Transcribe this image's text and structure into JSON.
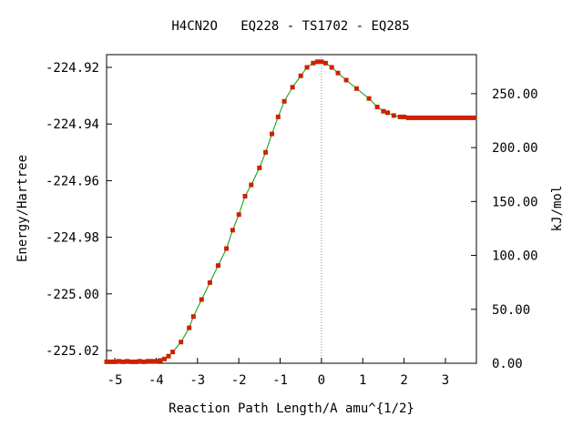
{
  "chart_data": {
    "type": "line",
    "title": "H4CN2O   EQ228 - TS1702 - EQ285",
    "xlabel": "Reaction Path Length/A amu^{1/2}",
    "ylabel": "Energy/Hartree",
    "y2label": "kJ/mol",
    "xlim": [
      -5.2,
      3.75
    ],
    "ylim": [
      -225.0245,
      -224.9155
    ],
    "y2lim": [
      0,
      286.2
    ],
    "xticks": [
      -5,
      -4,
      -3,
      -2,
      -1,
      0,
      1,
      2,
      3
    ],
    "xtick_labels": [
      "-5",
      "-4",
      "-3",
      "-2",
      "-1",
      "0",
      "1",
      "2",
      "3"
    ],
    "yticks": [
      -224.92,
      -224.94,
      -224.96,
      -224.98,
      -225.0,
      -225.02
    ],
    "ytick_labels": [
      "-224.92",
      "-224.94",
      "-224.96",
      "-224.98",
      "-225.00",
      "-225.02"
    ],
    "y2ticks": [
      0,
      50,
      100,
      150,
      200,
      250
    ],
    "y2tick_labels": [
      "0.00",
      "50.00",
      "100.00",
      "150.00",
      "200.00",
      "250.00"
    ],
    "ts_marker_x": 0,
    "colors": {
      "line": "#00a000",
      "marker": "#cc2200",
      "ts_line": "#888888"
    },
    "series": [
      {
        "x": [
          -5.2,
          -5.1,
          -5.0,
          -4.9,
          -4.8,
          -4.7,
          -4.6,
          -4.5,
          -4.4,
          -4.3,
          -4.2,
          -4.1,
          -4.0,
          -3.9,
          -3.8,
          -3.7,
          -3.6,
          -3.4,
          -3.2,
          -3.1,
          -2.9,
          -2.7,
          -2.5,
          -2.3,
          -2.15,
          -2.0,
          -1.85,
          -1.7,
          -1.5,
          -1.35,
          -1.2,
          -1.05,
          -0.9,
          -0.7,
          -0.5,
          -0.35,
          -0.2,
          -0.1,
          0.0,
          0.1,
          0.25,
          0.4,
          0.6,
          0.85,
          1.15,
          1.35,
          1.5,
          1.6,
          1.75,
          1.9,
          2.0,
          2.1,
          2.2,
          2.3,
          2.4,
          2.5,
          2.6,
          2.7,
          2.8,
          2.9,
          3.0,
          3.1,
          3.2,
          3.3,
          3.4,
          3.5,
          3.6,
          3.7
        ],
        "y": [
          -225.024,
          -225.024,
          -225.024,
          -225.0238,
          -225.024,
          -225.0238,
          -225.024,
          -225.024,
          -225.0238,
          -225.024,
          -225.0238,
          -225.0238,
          -225.0238,
          -225.0235,
          -225.023,
          -225.022,
          -225.0205,
          -225.017,
          -225.012,
          -225.008,
          -225.002,
          -224.996,
          -224.99,
          -224.984,
          -224.9775,
          -224.972,
          -224.9655,
          -224.9615,
          -224.9555,
          -224.95,
          -224.9435,
          -224.9375,
          -224.932,
          -224.927,
          -224.923,
          -224.92,
          -224.9185,
          -224.918,
          -224.918,
          -224.9185,
          -224.92,
          -224.922,
          -224.9245,
          -224.9275,
          -224.931,
          -224.934,
          -224.9355,
          -224.936,
          -224.937,
          -224.9375,
          -224.9375,
          -224.9378,
          -224.9378,
          -224.9378,
          -224.9378,
          -224.9378,
          -224.9378,
          -224.9378,
          -224.9378,
          -224.9378,
          -224.9378,
          -224.9378,
          -224.9378,
          -224.9378,
          -224.9378,
          -224.9378,
          -224.9378,
          -224.9378
        ]
      }
    ]
  }
}
